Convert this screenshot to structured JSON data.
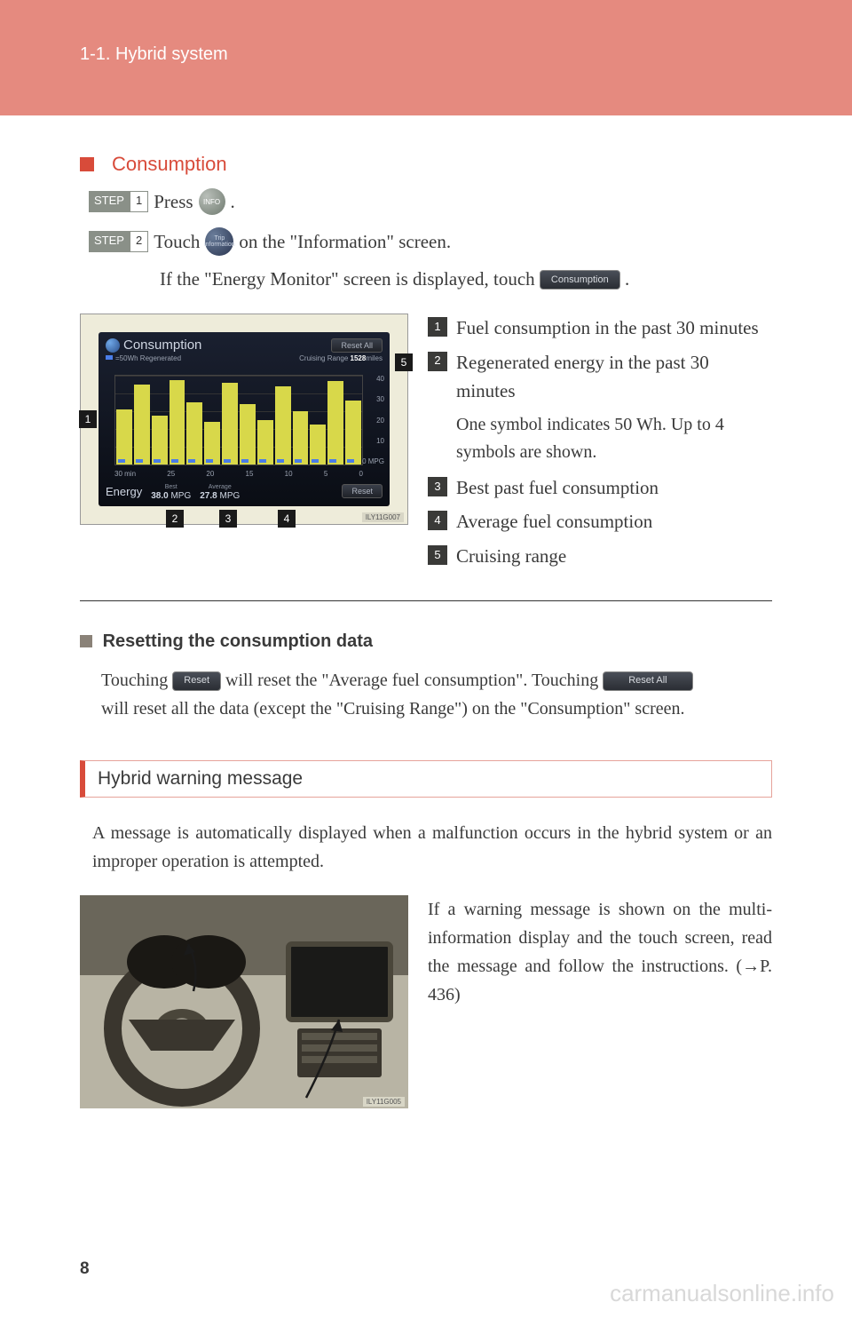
{
  "header": {
    "section": "1-1. Hybrid system"
  },
  "consumption": {
    "title": "Consumption",
    "steps": [
      {
        "label": "STEP",
        "num": "1",
        "verb": "Press",
        "btn": "INFO",
        "suffix": "."
      },
      {
        "label": "STEP",
        "num": "2",
        "verb": "Touch",
        "btn_top": "Trip",
        "btn_bot": "information",
        "suffix": " on the \"Information\" screen."
      }
    ],
    "note_prefix": "If the \"Energy Monitor\" screen is displayed, touch ",
    "note_btn": "Consumption",
    "note_suffix": " ."
  },
  "chart": {
    "title": "Consumption",
    "reset_all": "Reset All",
    "regen_label": "=50Wh Regenerated",
    "cruising_label": "Cruising Range",
    "cruising_value": "1528",
    "cruising_unit": "miles",
    "y_ticks": [
      "40",
      "30",
      "20",
      "10",
      "0 MPG"
    ],
    "x_ticks": [
      "30 min",
      "25",
      "20",
      "15",
      "10",
      "5",
      "0"
    ],
    "energy_label": "Energy",
    "best_label": "Best",
    "best_value": "38.0",
    "avg_label": "Average",
    "avg_value": "27.8",
    "mpg": "MPG",
    "reset": "Reset",
    "img_id": "ILY11G007",
    "bars_pct": [
      62,
      90,
      55,
      95,
      70,
      48,
      92,
      68,
      50,
      88,
      60,
      45,
      94,
      72
    ],
    "colors": {
      "bar": "#d8d84a",
      "regen": "#4a7de8",
      "bg_top": "#1a2030",
      "bg_bot": "#0a0d14"
    }
  },
  "legend": [
    {
      "n": "1",
      "text": "Fuel consumption in the past 30 minutes"
    },
    {
      "n": "2",
      "text": "Regenerated energy in the past 30 minutes"
    },
    {
      "n": "3",
      "text": "Best past fuel consumption"
    },
    {
      "n": "4",
      "text": "Average fuel consumption"
    },
    {
      "n": "5",
      "text": "Cruising range"
    }
  ],
  "legend_note": "One symbol indicates 50 Wh. Up to 4 symbols are shown.",
  "reset_section": {
    "title": "Resetting the consumption data",
    "line1a": "Touching ",
    "btn1": "Reset",
    "line1b": " will reset the \"Average fuel consumption\". Touching ",
    "btn2": "Reset All",
    "line2": "will reset all the data (except the \"Cruising Range\") on the \"Consumption\" screen."
  },
  "hybrid": {
    "heading": "Hybrid warning message",
    "para": "A message is automatically displayed when a malfunction occurs in the hybrid system or an improper operation is attempted.",
    "side": "If a warning message is shown on the multi-information display and the touch screen, read the message and follow the instructions. (→P. 436)",
    "img_id": "ILY11G005"
  },
  "page": "8",
  "watermark": "carmanualsonline.info"
}
